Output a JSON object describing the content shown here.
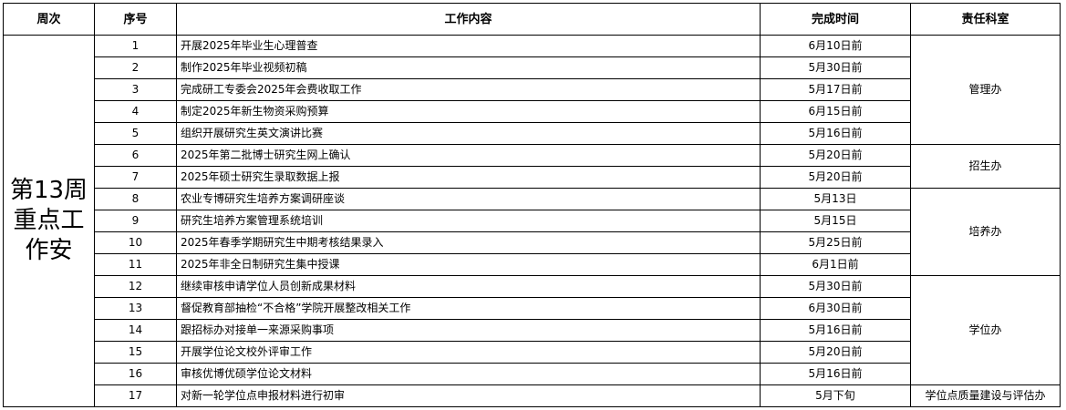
{
  "headers": {
    "week": "周次",
    "no": "序号",
    "content": "工作内容",
    "deadline": "完成时间",
    "dept": "责任科室"
  },
  "week_label_lines": [
    "第13周",
    "重点工",
    "作安"
  ],
  "departments": [
    {
      "name": "管理办",
      "rows": 5
    },
    {
      "name": "招生办",
      "rows": 2
    },
    {
      "name": "培养办",
      "rows": 4
    },
    {
      "name": "学位办",
      "rows": 5
    },
    {
      "name": "学位点质量建设与评估办",
      "rows": 1
    }
  ],
  "tasks": [
    {
      "no": "1",
      "content": "开展2025年毕业生心理普查",
      "deadline": "6月10日前"
    },
    {
      "no": "2",
      "content": "制作2025年毕业视频初稿",
      "deadline": "5月30日前"
    },
    {
      "no": "3",
      "content": "完成研工专委会2025年会费收取工作",
      "deadline": "5月17日前"
    },
    {
      "no": "4",
      "content": "制定2025年新生物资采购预算",
      "deadline": "6月15日前"
    },
    {
      "no": "5",
      "content": "组织开展研究生英文演讲比赛",
      "deadline": "5月16日前"
    },
    {
      "no": "6",
      "content": "2025年第二批博士研究生网上确认",
      "deadline": "5月20日前"
    },
    {
      "no": "7",
      "content": "2025年硕士研究生录取数据上报",
      "deadline": "5月20日前"
    },
    {
      "no": "8",
      "content": "农业专博研究生培养方案调研座谈",
      "deadline": "5月13日"
    },
    {
      "no": "9",
      "content": "研究生培养方案管理系统培训",
      "deadline": "5月15日"
    },
    {
      "no": "10",
      "content": "2025年春季学期研究生中期考核结果录入",
      "deadline": "5月25日前"
    },
    {
      "no": "11",
      "content": "2025年非全日制研究生集中授课",
      "deadline": "6月1日前"
    },
    {
      "no": "12",
      "content": "继续审核申请学位人员创新成果材料",
      "deadline": "5月30日前"
    },
    {
      "no": "13",
      "content": "督促教育部抽检“不合格”学院开展整改相关工作",
      "deadline": "6月30日前"
    },
    {
      "no": "14",
      "content": "跟招标办对接单一来源采购事项",
      "deadline": "5月16日前"
    },
    {
      "no": "15",
      "content": "开展学位论文校外评审工作",
      "deadline": "5月20日前"
    },
    {
      "no": "16",
      "content": "审核优博优硕学位论文材料",
      "deadline": "5月16日前"
    },
    {
      "no": "17",
      "content": "对新一轮学位点申报材料进行初审",
      "deadline": "5月下旬"
    }
  ]
}
